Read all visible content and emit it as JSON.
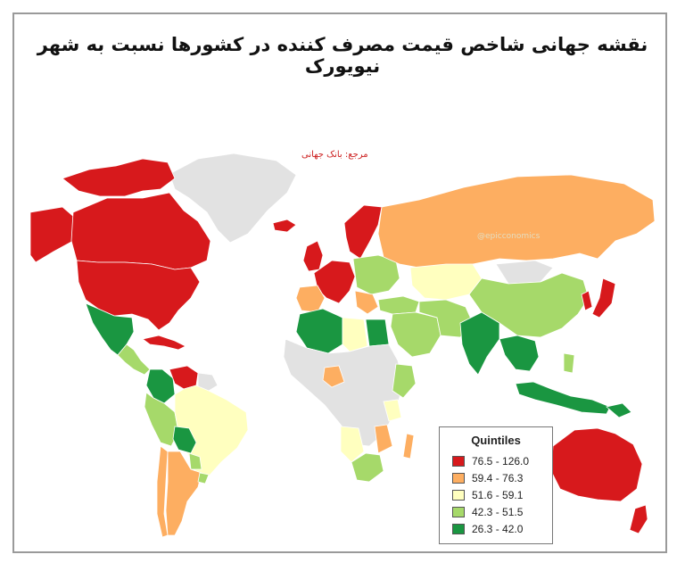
{
  "title": "نقشه جهانی شاخص قیمت مصرف کننده در کشورها نسبت به شهر نیویورک",
  "source": "مرجع: بانک جهانی",
  "watermark": "@epicconomics",
  "legend": {
    "title": "Quintiles",
    "items": [
      {
        "label": "76.5 - 126.0",
        "color": "#d7191c"
      },
      {
        "label": "59.4 - 76.3",
        "color": "#fdae61"
      },
      {
        "label": "51.6 - 59.1",
        "color": "#ffffbf"
      },
      {
        "label": "42.3 - 51.5",
        "color": "#a6d96a"
      },
      {
        "label": "26.3 - 42.0",
        "color": "#1a9641"
      }
    ]
  },
  "colors": {
    "no_data": "#e2e2e2",
    "frame": "#9a9a9a",
    "source_text": "#cc1f1f"
  }
}
